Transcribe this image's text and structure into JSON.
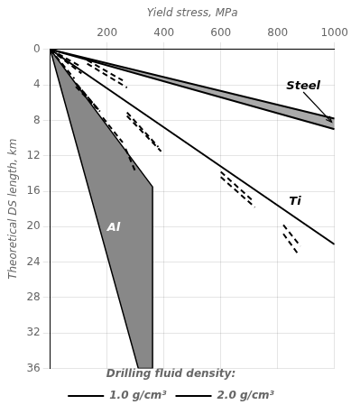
{
  "chart_data": {
    "type": "line",
    "xlabel": "Yield stress, MPa",
    "ylabel": "Theoretical DS length, km",
    "xlim": [
      0,
      1000
    ],
    "ylim": [
      36,
      0
    ],
    "xticks": [
      200,
      400,
      600,
      800,
      1000
    ],
    "yticks": [
      0,
      4,
      8,
      12,
      16,
      20,
      24,
      28,
      32,
      36
    ],
    "grid": true,
    "legend": "bottom",
    "legend_title": "Drilling fluid density:",
    "series": [
      {
        "type": "polygon",
        "color": "#888888",
        "x": [
          0,
          360,
          360,
          310
        ],
        "values": [
          0,
          15.5,
          36.0,
          36.0
        ]
      },
      {
        "type": "band",
        "color": "#aaaaaa",
        "x": [
          0,
          1000
        ],
        "lower": [
          0,
          7.8
        ],
        "upper": [
          0,
          9.0
        ]
      },
      {
        "type": "line",
        "name": "1.0 g/cm³",
        "line_style": "solid",
        "color": "#000000",
        "x": [
          0,
          1000
        ],
        "values": [
          0,
          7.8
        ]
      },
      {
        "type": "line",
        "name": "1.0 g/cm³",
        "line_style": "solid",
        "color": "#000000",
        "x": [
          0,
          1000
        ],
        "values": [
          0,
          9.0
        ]
      },
      {
        "type": "line",
        "name": "1.0 g/cm³",
        "line_style": "solid",
        "color": "#000000",
        "x": [
          0,
          1000
        ],
        "values": [
          0,
          22.0
        ]
      },
      {
        "type": "line",
        "name": "2.0 g/cm³",
        "line_style": "dashed",
        "color": "#000000",
        "x": [
          0,
          100
        ],
        "values": [
          0,
          1.8
        ]
      },
      {
        "type": "line",
        "name": "2.0 g/cm³",
        "line_style": "dashed",
        "color": "#000000",
        "x": [
          0,
          110
        ],
        "values": [
          0,
          2.7
        ]
      },
      {
        "type": "line",
        "name": "2.0 g/cm³",
        "line_style": "dashed",
        "color": "#000000",
        "x": [
          130,
          255
        ],
        "values": [
          1.2,
          3.5
        ]
      },
      {
        "type": "line",
        "name": "2.0 g/cm³",
        "line_style": "dashed",
        "color": "#000000",
        "x": [
          130,
          270
        ],
        "values": [
          1.6,
          4.3
        ]
      },
      {
        "type": "line",
        "name": "2.0 g/cm³",
        "line_style": "dashed",
        "color": "#000000",
        "x": [
          90,
          175
        ],
        "values": [
          3.8,
          7.0
        ]
      },
      {
        "type": "line",
        "name": "2.0 g/cm³",
        "line_style": "dashed",
        "color": "#000000",
        "x": [
          90,
          165
        ],
        "values": [
          4.2,
          6.7
        ]
      },
      {
        "type": "line",
        "name": "2.0 g/cm³",
        "line_style": "dashed",
        "color": "#000000",
        "x": [
          270,
          390
        ],
        "values": [
          7.5,
          11.5
        ]
      },
      {
        "type": "line",
        "name": "2.0 g/cm³",
        "line_style": "dashed",
        "color": "#000000",
        "x": [
          270,
          380
        ],
        "values": [
          7.1,
          11.0
        ]
      },
      {
        "type": "line",
        "name": "2.0 g/cm³",
        "line_style": "dashed",
        "color": "#000000",
        "x": [
          600,
          720
        ],
        "values": [
          14.4,
          17.8
        ]
      },
      {
        "type": "line",
        "name": "2.0 g/cm³",
        "line_style": "dashed",
        "color": "#000000",
        "x": [
          600,
          710
        ],
        "values": [
          13.8,
          17.0
        ]
      },
      {
        "type": "line",
        "name": "2.0 g/cm³",
        "line_style": "dashed",
        "color": "#000000",
        "x": [
          820,
          880
        ],
        "values": [
          19.8,
          22.2
        ]
      },
      {
        "type": "line",
        "name": "2.0 g/cm³",
        "line_style": "dashed",
        "color": "#000000",
        "x": [
          820,
          870
        ],
        "values": [
          20.8,
          23.0
        ]
      },
      {
        "type": "line",
        "name": "2.0 g/cm³",
        "line_style": "dashed",
        "color": "#000000",
        "x": [
          0,
          85
        ],
        "values": [
          0,
          3.3
        ]
      },
      {
        "type": "line",
        "name": "2.0 g/cm³",
        "line_style": "dashed",
        "color": "#000000",
        "x": [
          95,
          175
        ],
        "values": [
          4.0,
          7.0
        ]
      },
      {
        "type": "line",
        "name": "2.0 g/cm³",
        "line_style": "dashed",
        "color": "#000000",
        "x": [
          185,
          255
        ],
        "values": [
          7.7,
          10.5
        ]
      },
      {
        "type": "line",
        "name": "2.0 g/cm³",
        "line_style": "dashed",
        "color": "#000000",
        "x": [
          265,
          300
        ],
        "values": [
          11.2,
          13.8
        ]
      }
    ],
    "annotations": [
      {
        "text": "Steel",
        "x": 950,
        "y": 4.5,
        "arrow_x": 990,
        "arrow_y": 8.2
      },
      {
        "text": "Ti",
        "x": 840,
        "y": 17.5
      },
      {
        "text": "Al",
        "x": 200,
        "y": 20.5,
        "color": "white"
      }
    ]
  }
}
